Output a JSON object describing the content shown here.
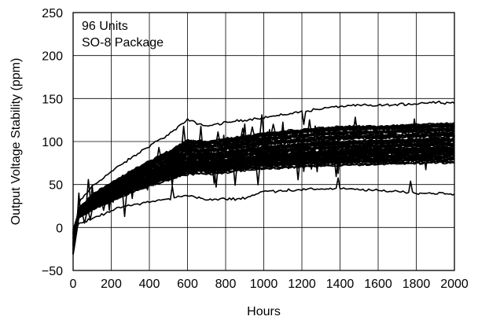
{
  "chart_data": {
    "type": "line",
    "title": "",
    "xlabel": "Hours",
    "ylabel": "Output Voltage Stability (ppm)",
    "xlim": [
      0,
      2000
    ],
    "ylim": [
      -50,
      250
    ],
    "x_ticks": [
      "0",
      "200",
      "400",
      "600",
      "800",
      "1000",
      "1200",
      "1400",
      "1600",
      "1800",
      "2000"
    ],
    "y_ticks": [
      "−50",
      "0",
      "50",
      "100",
      "150",
      "200",
      "250"
    ],
    "grid": true,
    "legend": "none",
    "annotations": [
      "96 Units",
      "SO-8 Package"
    ],
    "series_count": 96,
    "line_color": "#000000",
    "envelope": {
      "x": [
        0,
        100,
        200,
        300,
        400,
        500,
        600,
        700,
        800,
        900,
        1000,
        1100,
        1200,
        1300,
        1400,
        1500,
        1600,
        1700,
        1800,
        1900,
        2000
      ],
      "upper": [
        20,
        48,
        65,
        80,
        95,
        108,
        125,
        118,
        122,
        125,
        128,
        131,
        135,
        138,
        141,
        142,
        142,
        143,
        144,
        146,
        145
      ],
      "typical_high": [
        15,
        38,
        52,
        65,
        77,
        88,
        102,
        100,
        103,
        106,
        110,
        112,
        114,
        116,
        117,
        118,
        118,
        119,
        120,
        121,
        121
      ],
      "typical_low": [
        8,
        20,
        30,
        40,
        48,
        55,
        62,
        62,
        64,
        66,
        68,
        69,
        70,
        71,
        72,
        73,
        73,
        74,
        74,
        75,
        75
      ],
      "lower": [
        2,
        10,
        20,
        26,
        30,
        33,
        38,
        32,
        33,
        34,
        42,
        43,
        44,
        45,
        45,
        44,
        43,
        42,
        40,
        40,
        38
      ]
    }
  }
}
